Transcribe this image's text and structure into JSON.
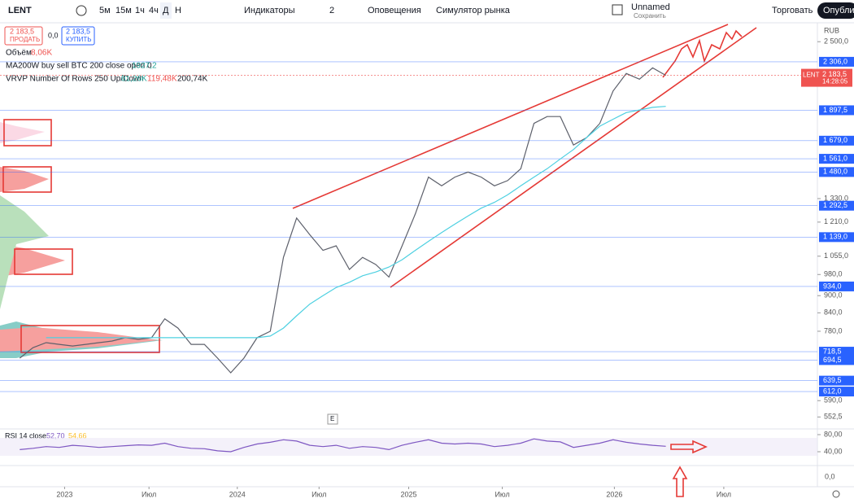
{
  "toolbar": {
    "symbol": "LENT",
    "intervals": [
      "5м",
      "15м",
      "1ч",
      "4ч",
      "Д",
      "Н"
    ],
    "indicators": "Индикаторы",
    "layouts": "2",
    "alerts": "Оповещения",
    "simulator": "Симулятор рынка",
    "layout_name": "Unnamed",
    "save": "Сохранить",
    "trade": "Торговать",
    "publish": "Опублик"
  },
  "order": {
    "sell_price": "2 183,5",
    "sell": "ПРОДАТЬ",
    "spread": "0,0",
    "buy_price": "2 183,5",
    "buy": "КУПИТЬ"
  },
  "legend": {
    "volume": "Объём",
    "volume_value": "8,06K",
    "ma": "MA200W buy sell BTC 200 close open 0",
    "ma_value": "1927,2",
    "vrvp": "VRVP Number Of Rows 250 Up/Down",
    "vrvp_up": "81,26K",
    "vrvp_down": "119,48K",
    "vrvp_total": "200,74K",
    "rsi": "RSI 14 close",
    "rsi_value": "52,70",
    "rsi_ma": "54,66",
    "macd_tick": "0,0",
    "badge": "E"
  },
  "price_axis": {
    "currency": "RUB",
    "symbol": "LENT",
    "last": "2 183,5",
    "countdown": "14:28:05"
  },
  "chart_data": [
    {
      "type": "line",
      "log_scale": true,
      "xlim": [
        0,
        62
      ],
      "ylim": [
        530,
        2680
      ],
      "x": [
        1.5,
        2.5,
        3.5,
        4.5,
        5.5,
        6.5,
        7.5,
        8.5,
        9.5,
        10.5,
        11.5,
        12.5,
        13.5,
        14.5,
        15.5,
        16.5,
        17.5,
        18.5,
        19.5,
        20.5,
        21.5,
        22.5,
        23.5,
        24.5,
        25.5,
        26.5,
        27.5,
        28.5,
        29.5,
        30.5,
        31.5,
        32.5,
        33.5,
        34.5,
        35.5,
        36.5,
        37.5,
        38.5,
        39.5,
        40.5,
        41.5,
        42.5,
        43.5,
        44.5,
        45.5,
        46.5,
        47.5,
        48.5,
        49.5,
        50.5
      ],
      "series": [
        {
          "name": "LENT",
          "color": "#5d606b",
          "values": [
            700,
            730,
            745,
            740,
            735,
            740,
            745,
            750,
            760,
            755,
            760,
            820,
            790,
            740,
            740,
            700,
            660,
            700,
            760,
            780,
            1050,
            1230,
            1150,
            1080,
            1100,
            1000,
            1050,
            1020,
            970,
            1100,
            1250,
            1450,
            1400,
            1450,
            1480,
            1450,
            1400,
            1430,
            1500,
            1800,
            1850,
            1850,
            1650,
            1700,
            1800,
            2050,
            2200,
            2150,
            2250,
            2183.5
          ]
        },
        {
          "name": "MA200W",
          "color": "#4dd0e1",
          "values": [
            null,
            null,
            760,
            760,
            760,
            760,
            760,
            760,
            760,
            760,
            760,
            760,
            760,
            760,
            760,
            760,
            760,
            760,
            760,
            765,
            790,
            830,
            870,
            900,
            930,
            950,
            975,
            990,
            1010,
            1040,
            1080,
            1120,
            1160,
            1200,
            1240,
            1280,
            1310,
            1350,
            1400,
            1450,
            1500,
            1560,
            1620,
            1700,
            1780,
            1830,
            1880,
            1900,
            1920,
            1927.2
          ]
        }
      ],
      "yticks": [
        {
          "value": 2500,
          "label": "2 500,0"
        },
        {
          "value": 1330,
          "label": "1 330,0"
        },
        {
          "value": 1210,
          "label": "1 210,0"
        },
        {
          "value": 1055,
          "label": "1 055,0"
        },
        {
          "value": 980,
          "label": "980,0"
        },
        {
          "value": 900,
          "label": "900,0"
        },
        {
          "value": 840,
          "label": "840,0"
        },
        {
          "value": 780,
          "label": "780,0"
        },
        {
          "value": 590,
          "label": "590,0"
        },
        {
          "value": 552.5,
          "label": "552,5"
        }
      ],
      "levels": [
        {
          "value": 2306,
          "label": "2 306,0"
        },
        {
          "value": 1897.5,
          "label": "1 897,5"
        },
        {
          "value": 1679,
          "label": "1 679,0"
        },
        {
          "value": 1561,
          "label": "1 561,0"
        },
        {
          "value": 1480,
          "label": "1 480,0"
        },
        {
          "value": 1292.5,
          "label": "1 292,5"
        },
        {
          "value": 1139,
          "label": "1 139,0"
        },
        {
          "value": 934,
          "label": "934,0"
        },
        {
          "value": 718.5,
          "label": "718,5"
        },
        {
          "value": 694.5,
          "label": "694,5"
        },
        {
          "value": 639.5,
          "label": "639,5"
        },
        {
          "value": 612,
          "label": "612,0"
        }
      ],
      "xticks": [
        {
          "value": 4.9,
          "label": "2023"
        },
        {
          "value": 11.3,
          "label": "Июл"
        },
        {
          "value": 18,
          "label": "2024"
        },
        {
          "value": 24.2,
          "label": "Июл"
        },
        {
          "value": 31,
          "label": "2025"
        },
        {
          "value": 38.1,
          "label": "Июл"
        },
        {
          "value": 46.6,
          "label": "2026"
        },
        {
          "value": 54.9,
          "label": "Июл"
        }
      ]
    },
    {
      "type": "line",
      "xlim": [
        0,
        62
      ],
      "ylim": [
        11.4,
        87.6
      ],
      "x": [
        1.5,
        2.5,
        3.5,
        4.5,
        5.5,
        6.5,
        7.5,
        8.5,
        9.5,
        10.5,
        11.5,
        12.5,
        13.5,
        14.5,
        15.5,
        16.5,
        17.5,
        18.5,
        19.5,
        20.5,
        21.5,
        22.5,
        23.5,
        24.5,
        25.5,
        26.5,
        27.5,
        28.5,
        29.5,
        30.5,
        31.5,
        32.5,
        33.5,
        34.5,
        35.5,
        36.5,
        37.5,
        38.5,
        39.5,
        40.5,
        41.5,
        42.5,
        43.5,
        44.5,
        45.5,
        46.5,
        47.5,
        48.5,
        49.5,
        50.5
      ],
      "series": [
        {
          "name": "RSI",
          "color": "#7e57c2",
          "values": [
            45,
            48,
            52,
            50,
            55,
            53,
            50,
            52,
            54,
            56,
            55,
            60,
            52,
            48,
            47,
            42,
            40,
            50,
            58,
            62,
            68,
            65,
            55,
            52,
            55,
            48,
            52,
            50,
            45,
            55,
            62,
            68,
            60,
            58,
            60,
            58,
            52,
            55,
            60,
            70,
            65,
            63,
            50,
            55,
            60,
            68,
            62,
            58,
            55,
            52.7
          ]
        }
      ],
      "yticks": [
        {
          "value": 80,
          "label": "80,00"
        },
        {
          "value": 40,
          "label": "40,00"
        }
      ]
    }
  ]
}
